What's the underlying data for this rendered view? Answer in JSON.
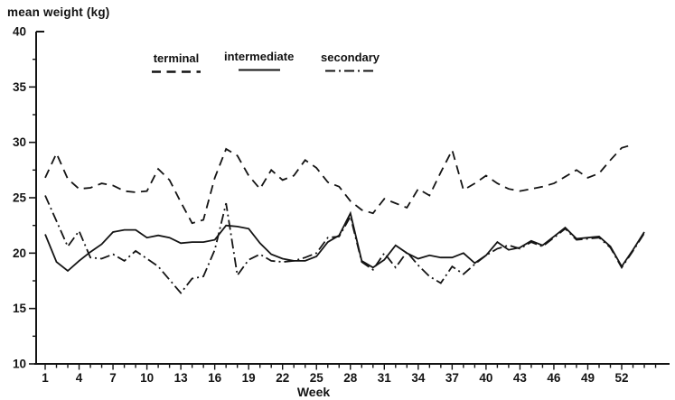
{
  "page": {
    "background": "#ffffff",
    "ink_color": "#141414"
  },
  "chart_data": {
    "type": "line",
    "title": "mean weight (kg)",
    "xlabel": "Week",
    "ylabel": "",
    "ylim": [
      10,
      40
    ],
    "xlim": [
      0,
      55
    ],
    "grid": false,
    "legend_position": "top",
    "y_major_ticks": [
      10,
      15,
      20,
      25,
      30,
      35,
      40
    ],
    "y_minor_ticks": [
      12.5,
      17.5,
      22.5,
      27.5,
      32.5,
      37.5
    ],
    "x_labeled_ticks": [
      1,
      4,
      7,
      10,
      13,
      16,
      19,
      22,
      25,
      28,
      31,
      34,
      37,
      40,
      43,
      46,
      49,
      52
    ],
    "x_minor_tick_weeks": [
      1,
      55
    ],
    "weeks": [
      1,
      2,
      3,
      4,
      5,
      6,
      7,
      8,
      9,
      10,
      11,
      12,
      13,
      14,
      15,
      16,
      17,
      18,
      19,
      20,
      21,
      22,
      23,
      24,
      25,
      26,
      27,
      28,
      29,
      30,
      31,
      32,
      33,
      34,
      35,
      36,
      37,
      38,
      39,
      40,
      41,
      42,
      43,
      44,
      45,
      46,
      47,
      48,
      49,
      50,
      51,
      52,
      53,
      54
    ],
    "series": [
      {
        "name": "terminal",
        "style": "dashed",
        "dash": "10 6.5",
        "values": [
          26.8,
          29.0,
          26.7,
          25.8,
          25.9,
          26.3,
          26.1,
          25.6,
          25.5,
          25.6,
          27.6,
          26.6,
          24.6,
          22.7,
          23.0,
          26.8,
          29.4,
          28.8,
          27.0,
          25.8,
          27.5,
          26.6,
          27.0,
          28.4,
          27.7,
          26.4,
          26.0,
          24.7,
          23.9,
          23.6,
          24.9,
          24.5,
          24.1,
          25.8,
          25.2,
          27.3,
          29.3,
          25.7,
          26.3,
          27.0,
          26.3,
          25.8,
          25.6,
          25.8,
          26.0,
          26.3,
          26.9,
          27.5,
          26.8,
          27.2,
          28.4,
          29.5,
          29.8,
          null
        ]
      },
      {
        "name": "intermediate",
        "style": "solid",
        "dash": "",
        "values": [
          21.7,
          19.2,
          18.4,
          19.3,
          20.1,
          20.8,
          21.9,
          22.1,
          22.1,
          21.4,
          21.6,
          21.4,
          20.9,
          21.0,
          21.0,
          21.2,
          22.5,
          22.4,
          22.2,
          20.9,
          19.9,
          19.5,
          19.3,
          19.3,
          19.7,
          21.0,
          21.6,
          23.6,
          19.3,
          18.7,
          19.4,
          20.7,
          20.0,
          19.5,
          19.8,
          19.6,
          19.6,
          20.0,
          19.1,
          19.8,
          21.0,
          20.3,
          20.5,
          21.1,
          20.7,
          21.5,
          22.3,
          21.3,
          21.4,
          21.5,
          20.6,
          18.8,
          20.3,
          21.9
        ]
      },
      {
        "name": "secondary",
        "style": "dash-dot",
        "dash": "11 4 2 4",
        "values": [
          25.2,
          22.9,
          20.6,
          22.0,
          19.6,
          19.5,
          19.9,
          19.3,
          20.2,
          19.5,
          18.8,
          17.6,
          16.4,
          17.7,
          17.9,
          20.3,
          24.5,
          18.0,
          19.4,
          19.9,
          19.3,
          19.2,
          19.3,
          19.6,
          20.0,
          21.4,
          21.5,
          23.3,
          19.2,
          18.5,
          20.0,
          18.7,
          20.1,
          18.9,
          17.9,
          17.3,
          18.8,
          18.1,
          19.0,
          19.8,
          20.4,
          20.7,
          20.4,
          21.0,
          20.6,
          21.4,
          22.2,
          21.2,
          21.3,
          21.4,
          20.5,
          18.7,
          20.2,
          21.8
        ]
      }
    ]
  }
}
